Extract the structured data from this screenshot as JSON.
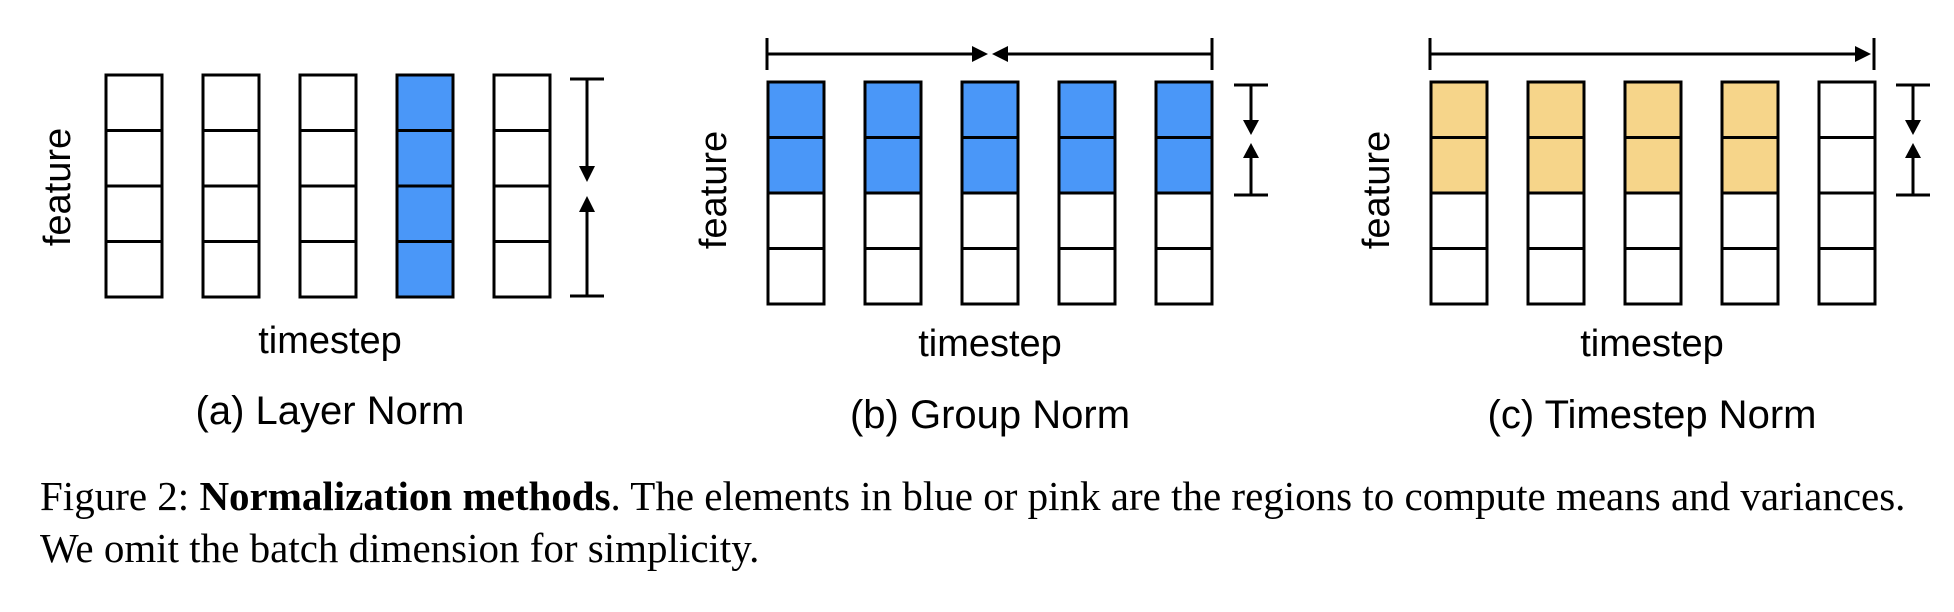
{
  "colors": {
    "blue": "#4A97F8",
    "yellow": "#F6D58A",
    "white": "#ffffff",
    "stroke": "#000000"
  },
  "panels": [
    {
      "id": "layer-norm",
      "title": "(a) Layer Norm",
      "xlabel": "timestep",
      "ylabel": "feature",
      "fill_pattern": [
        [
          "white",
          "white",
          "white",
          "white"
        ],
        [
          "white",
          "white",
          "white",
          "white"
        ],
        [
          "white",
          "white",
          "white",
          "white"
        ],
        [
          "blue",
          "blue",
          "blue",
          "blue"
        ],
        [
          "white",
          "white",
          "white",
          "white"
        ]
      ]
    },
    {
      "id": "group-norm",
      "title": "(b) Group Norm",
      "xlabel": "timestep",
      "ylabel": "feature",
      "fill_pattern": [
        [
          "blue",
          "blue",
          "white",
          "white"
        ],
        [
          "blue",
          "blue",
          "white",
          "white"
        ],
        [
          "blue",
          "blue",
          "white",
          "white"
        ],
        [
          "blue",
          "blue",
          "white",
          "white"
        ],
        [
          "blue",
          "blue",
          "white",
          "white"
        ]
      ]
    },
    {
      "id": "timestep-norm",
      "title": "(c) Timestep Norm",
      "xlabel": "timestep",
      "ylabel": "feature",
      "fill_pattern": [
        [
          "yellow",
          "yellow",
          "white",
          "white"
        ],
        [
          "yellow",
          "yellow",
          "white",
          "white"
        ],
        [
          "yellow",
          "yellow",
          "white",
          "white"
        ],
        [
          "yellow",
          "yellow",
          "white",
          "white"
        ],
        [
          "white",
          "white",
          "white",
          "white"
        ]
      ]
    }
  ],
  "caption": {
    "prefix": "Figure 2: ",
    "bold": "Normalization methods",
    "rest": ". The elements in blue or pink are the regions to compute means and variances. We omit the batch dimension for simplicity."
  }
}
